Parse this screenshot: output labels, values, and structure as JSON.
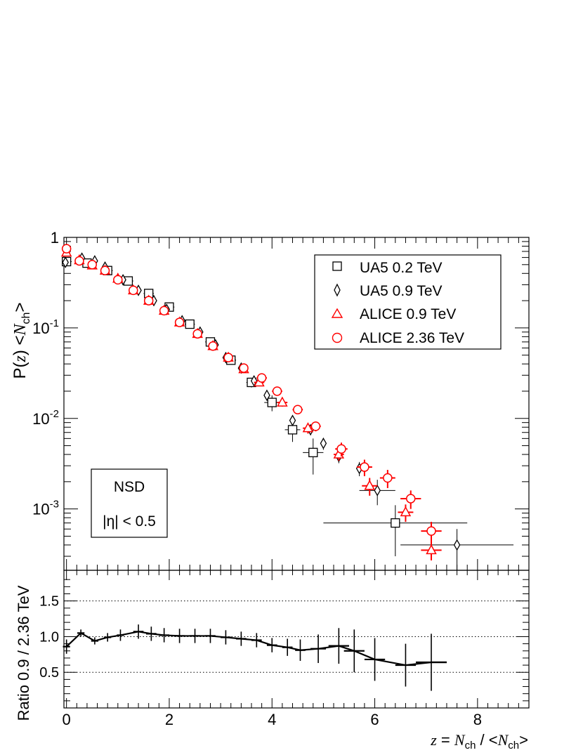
{
  "chart_data": [
    {
      "type": "scatter",
      "panel": "top",
      "ylabel": "P(z) <N_ch>",
      "ylabel_parts": {
        "prefix": "P(",
        "var": "z",
        "mid": ") <",
        "var2": "N",
        "sub": "ch",
        "suffix": ">"
      },
      "yscale": "log",
      "ylim": [
        0.00021,
        1
      ],
      "xlim": [
        -0.05,
        9.0
      ],
      "y_tick_labels": [
        {
          "value": 1,
          "base": "1",
          "exp": ""
        },
        {
          "value": 0.1,
          "base": "10",
          "exp": "-1"
        },
        {
          "value": 0.01,
          "base": "10",
          "exp": "-2"
        },
        {
          "value": 0.001,
          "base": "10",
          "exp": "-3"
        }
      ],
      "legend": {
        "placement": "top-right",
        "entries": [
          {
            "label": "UA5 0.2 TeV",
            "marker": "square",
            "color": "#000000"
          },
          {
            "label": "UA5 0.9 TeV",
            "marker": "diamond",
            "color": "#000000"
          },
          {
            "label": "ALICE 0.9 TeV",
            "marker": "triangle",
            "color": "#ff0000"
          },
          {
            "label": "ALICE 2.36 TeV",
            "marker": "circle",
            "color": "#ff0000"
          }
        ]
      },
      "annotation": {
        "line1": "NSD",
        "line2": "|η| < 0.5"
      },
      "series": [
        {
          "name": "UA5 0.2 TeV",
          "marker": "square",
          "color": "#000000",
          "points": [
            {
              "x": 0.0,
              "y": 0.54,
              "xerr": 0.1,
              "yerr": 0.03
            },
            {
              "x": 0.4,
              "y": 0.52,
              "xerr": 0.1,
              "yerr": 0.02
            },
            {
              "x": 0.8,
              "y": 0.43,
              "xerr": 0.1,
              "yerr": 0.02
            },
            {
              "x": 1.2,
              "y": 0.33,
              "xerr": 0.1,
              "yerr": 0.015
            },
            {
              "x": 1.6,
              "y": 0.24,
              "xerr": 0.1,
              "yerr": 0.012
            },
            {
              "x": 2.0,
              "y": 0.17,
              "xerr": 0.1,
              "yerr": 0.01
            },
            {
              "x": 2.4,
              "y": 0.11,
              "xerr": 0.1,
              "yerr": 0.006
            },
            {
              "x": 2.8,
              "y": 0.07,
              "xerr": 0.1,
              "yerr": 0.005
            },
            {
              "x": 3.2,
              "y": 0.044,
              "xerr": 0.1,
              "yerr": 0.004
            },
            {
              "x": 3.6,
              "y": 0.025,
              "xerr": 0.1,
              "yerr": 0.003
            },
            {
              "x": 4.0,
              "y": 0.015,
              "xerr": 0.15,
              "yerr": 0.003
            },
            {
              "x": 4.4,
              "y": 0.0075,
              "xerr": 0.15,
              "yerr": 0.002
            },
            {
              "x": 4.8,
              "y": 0.0042,
              "xerr": 0.2,
              "yerr": 0.0018
            },
            {
              "x": 6.4,
              "y": 0.0007,
              "xerr": 1.4,
              "yerr": 0.0004
            }
          ]
        },
        {
          "name": "UA5 0.9 TeV",
          "marker": "diamond",
          "color": "#000000",
          "points": [
            {
              "x": -0.02,
              "y": 0.53,
              "xerr": 0.04,
              "yerr": 0.03
            },
            {
              "x": 0.3,
              "y": 0.59,
              "xerr": 0.05,
              "yerr": 0.03
            },
            {
              "x": 0.55,
              "y": 0.55,
              "xerr": 0.05,
              "yerr": 0.02
            },
            {
              "x": 0.75,
              "y": 0.47,
              "xerr": 0.05,
              "yerr": 0.02
            },
            {
              "x": 1.1,
              "y": 0.34,
              "xerr": 0.05,
              "yerr": 0.015
            },
            {
              "x": 1.4,
              "y": 0.26,
              "xerr": 0.05,
              "yerr": 0.012
            },
            {
              "x": 1.7,
              "y": 0.2,
              "xerr": 0.05,
              "yerr": 0.01
            },
            {
              "x": 1.95,
              "y": 0.16,
              "xerr": 0.05,
              "yerr": 0.008
            },
            {
              "x": 2.25,
              "y": 0.12,
              "xerr": 0.05,
              "yerr": 0.006
            },
            {
              "x": 2.6,
              "y": 0.09,
              "xerr": 0.05,
              "yerr": 0.005
            },
            {
              "x": 2.9,
              "y": 0.065,
              "xerr": 0.05,
              "yerr": 0.004
            },
            {
              "x": 3.1,
              "y": 0.047,
              "xerr": 0.05,
              "yerr": 0.003
            },
            {
              "x": 3.4,
              "y": 0.036,
              "xerr": 0.05,
              "yerr": 0.003
            },
            {
              "x": 3.65,
              "y": 0.026,
              "xerr": 0.05,
              "yerr": 0.002
            },
            {
              "x": 3.9,
              "y": 0.018,
              "xerr": 0.05,
              "yerr": 0.0018
            },
            {
              "x": 4.4,
              "y": 0.0095,
              "xerr": 0.05,
              "yerr": 0.0012
            },
            {
              "x": 4.75,
              "y": 0.0075,
              "xerr": 0.05,
              "yerr": 0.001
            },
            {
              "x": 5.0,
              "y": 0.0053,
              "xerr": 0.05,
              "yerr": 0.0008
            },
            {
              "x": 5.3,
              "y": 0.0038,
              "xerr": 0.05,
              "yerr": 0.0006
            },
            {
              "x": 5.7,
              "y": 0.0028,
              "xerr": 0.05,
              "yerr": 0.0005
            },
            {
              "x": 6.05,
              "y": 0.0016,
              "xerr": 0.35,
              "yerr": 0.0005
            },
            {
              "x": 7.6,
              "y": 0.0004,
              "xerr": 1.1,
              "yerr": 0.0002
            }
          ]
        },
        {
          "name": "ALICE 0.9 TeV",
          "marker": "triangle",
          "color": "#ff0000",
          "points": [
            {
              "x": 0.0,
              "y": 0.68,
              "xerr": 0.07,
              "yerr": 0.04
            },
            {
              "x": 0.25,
              "y": 0.56,
              "xerr": 0.07,
              "yerr": 0.03
            },
            {
              "x": 0.5,
              "y": 0.49,
              "xerr": 0.07,
              "yerr": 0.02
            },
            {
              "x": 0.75,
              "y": 0.43,
              "xerr": 0.07,
              "yerr": 0.02
            },
            {
              "x": 1.0,
              "y": 0.35,
              "xerr": 0.07,
              "yerr": 0.015
            },
            {
              "x": 1.3,
              "y": 0.26,
              "xerr": 0.07,
              "yerr": 0.012
            },
            {
              "x": 1.6,
              "y": 0.2,
              "xerr": 0.07,
              "yerr": 0.01
            },
            {
              "x": 1.9,
              "y": 0.155,
              "xerr": 0.07,
              "yerr": 0.008
            },
            {
              "x": 2.2,
              "y": 0.115,
              "xerr": 0.07,
              "yerr": 0.006
            },
            {
              "x": 2.55,
              "y": 0.086,
              "xerr": 0.07,
              "yerr": 0.005
            },
            {
              "x": 2.85,
              "y": 0.063,
              "xerr": 0.07,
              "yerr": 0.004
            },
            {
              "x": 3.15,
              "y": 0.047,
              "xerr": 0.07,
              "yerr": 0.003
            },
            {
              "x": 3.45,
              "y": 0.035,
              "xerr": 0.07,
              "yerr": 0.003
            },
            {
              "x": 3.75,
              "y": 0.025,
              "xerr": 0.1,
              "yerr": 0.002
            },
            {
              "x": 4.2,
              "y": 0.015,
              "xerr": 0.1,
              "yerr": 0.0015
            },
            {
              "x": 4.7,
              "y": 0.0078,
              "xerr": 0.1,
              "yerr": 0.001
            },
            {
              "x": 5.3,
              "y": 0.004,
              "xerr": 0.1,
              "yerr": 0.0006
            },
            {
              "x": 5.9,
              "y": 0.0018,
              "xerr": 0.15,
              "yerr": 0.0004
            },
            {
              "x": 6.6,
              "y": 0.00092,
              "xerr": 0.15,
              "yerr": 0.0002
            },
            {
              "x": 7.1,
              "y": 0.00035,
              "xerr": 0.2,
              "yerr": 8e-05
            }
          ]
        },
        {
          "name": "ALICE 2.36 TeV",
          "marker": "circle",
          "color": "#ff0000",
          "points": [
            {
              "x": 0.0,
              "y": 0.75,
              "xerr": 0.07,
              "yerr": 0.05
            },
            {
              "x": 0.25,
              "y": 0.55,
              "xerr": 0.07,
              "yerr": 0.03
            },
            {
              "x": 0.5,
              "y": 0.5,
              "xerr": 0.07,
              "yerr": 0.02
            },
            {
              "x": 0.75,
              "y": 0.43,
              "xerr": 0.07,
              "yerr": 0.02
            },
            {
              "x": 1.0,
              "y": 0.34,
              "xerr": 0.07,
              "yerr": 0.015
            },
            {
              "x": 1.3,
              "y": 0.26,
              "xerr": 0.07,
              "yerr": 0.012
            },
            {
              "x": 1.6,
              "y": 0.2,
              "xerr": 0.07,
              "yerr": 0.01
            },
            {
              "x": 1.9,
              "y": 0.155,
              "xerr": 0.07,
              "yerr": 0.008
            },
            {
              "x": 2.2,
              "y": 0.115,
              "xerr": 0.07,
              "yerr": 0.006
            },
            {
              "x": 2.55,
              "y": 0.086,
              "xerr": 0.07,
              "yerr": 0.005
            },
            {
              "x": 2.85,
              "y": 0.063,
              "xerr": 0.07,
              "yerr": 0.004
            },
            {
              "x": 3.15,
              "y": 0.047,
              "xerr": 0.07,
              "yerr": 0.003
            },
            {
              "x": 3.45,
              "y": 0.036,
              "xerr": 0.07,
              "yerr": 0.003
            },
            {
              "x": 3.8,
              "y": 0.028,
              "xerr": 0.1,
              "yerr": 0.002
            },
            {
              "x": 4.1,
              "y": 0.02,
              "xerr": 0.1,
              "yerr": 0.0018
            },
            {
              "x": 4.5,
              "y": 0.0125,
              "xerr": 0.1,
              "yerr": 0.0012
            },
            {
              "x": 4.85,
              "y": 0.0082,
              "xerr": 0.1,
              "yerr": 0.001
            },
            {
              "x": 5.35,
              "y": 0.0046,
              "xerr": 0.12,
              "yerr": 0.0008
            },
            {
              "x": 5.8,
              "y": 0.0029,
              "xerr": 0.15,
              "yerr": 0.0006
            },
            {
              "x": 6.25,
              "y": 0.0022,
              "xerr": 0.15,
              "yerr": 0.0005
            },
            {
              "x": 6.7,
              "y": 0.0013,
              "xerr": 0.2,
              "yerr": 0.0003
            },
            {
              "x": 7.1,
              "y": 0.00057,
              "xerr": 0.2,
              "yerr": 0.00015
            }
          ]
        }
      ]
    },
    {
      "type": "line",
      "panel": "bottom",
      "ylabel": "Ratio 0.9 / 2.36 TeV",
      "xlabel": "z = N_ch / <N_ch>",
      "xlabel_parts": {
        "var": "z",
        "eq": " = ",
        "var2": "N",
        "sub": "ch",
        "mid": " / <",
        "var3": "N",
        "sub2": "ch",
        "suffix": ">"
      },
      "xlim": [
        -0.05,
        9.0
      ],
      "ylim": [
        0.0,
        1.93
      ],
      "x_tick_labels": [
        "0",
        "2",
        "4",
        "6",
        "8"
      ],
      "x_tick_values": [
        0,
        2,
        4,
        6,
        8
      ],
      "y_tick_labels": [
        "0.5",
        "1.0",
        "1.5"
      ],
      "y_tick_values": [
        0.5,
        1.0,
        1.5
      ],
      "reference_lines": [
        0.5,
        1.0,
        1.5
      ],
      "series": [
        {
          "name": "",
          "color": "#000000",
          "points": [
            {
              "x": 0.0,
              "y": 0.86,
              "xerr": 0.07,
              "yerr": 0.1
            },
            {
              "x": 0.28,
              "y": 1.05,
              "xerr": 0.07,
              "yerr": 0.05
            },
            {
              "x": 0.55,
              "y": 0.94,
              "xerr": 0.07,
              "yerr": 0.05
            },
            {
              "x": 0.8,
              "y": 0.99,
              "xerr": 0.07,
              "yerr": 0.06
            },
            {
              "x": 1.05,
              "y": 1.02,
              "xerr": 0.07,
              "yerr": 0.08
            },
            {
              "x": 1.4,
              "y": 1.07,
              "xerr": 0.1,
              "yerr": 0.1
            },
            {
              "x": 1.65,
              "y": 1.04,
              "xerr": 0.1,
              "yerr": 0.1
            },
            {
              "x": 1.9,
              "y": 1.02,
              "xerr": 0.1,
              "yerr": 0.1
            },
            {
              "x": 2.2,
              "y": 1.01,
              "xerr": 0.1,
              "yerr": 0.1
            },
            {
              "x": 2.5,
              "y": 1.01,
              "xerr": 0.1,
              "yerr": 0.1
            },
            {
              "x": 2.8,
              "y": 1.01,
              "xerr": 0.1,
              "yerr": 0.1
            },
            {
              "x": 3.1,
              "y": 0.99,
              "xerr": 0.1,
              "yerr": 0.1
            },
            {
              "x": 3.4,
              "y": 0.97,
              "xerr": 0.1,
              "yerr": 0.1
            },
            {
              "x": 3.7,
              "y": 0.95,
              "xerr": 0.1,
              "yerr": 0.1
            },
            {
              "x": 4.0,
              "y": 0.88,
              "xerr": 0.1,
              "yerr": 0.1
            },
            {
              "x": 4.3,
              "y": 0.85,
              "xerr": 0.1,
              "yerr": 0.12
            },
            {
              "x": 4.55,
              "y": 0.81,
              "xerr": 0.1,
              "yerr": 0.15
            },
            {
              "x": 4.9,
              "y": 0.83,
              "xerr": 0.15,
              "yerr": 0.2
            },
            {
              "x": 5.3,
              "y": 0.87,
              "xerr": 0.2,
              "yerr": 0.25
            },
            {
              "x": 5.6,
              "y": 0.8,
              "xerr": 0.2,
              "yerr": 0.3
            },
            {
              "x": 6.0,
              "y": 0.68,
              "xerr": 0.2,
              "yerr": 0.3
            },
            {
              "x": 6.6,
              "y": 0.6,
              "xerr": 0.2,
              "yerr": 0.3
            },
            {
              "x": 7.1,
              "y": 0.64,
              "xerr": 0.3,
              "yerr": 0.4
            }
          ]
        }
      ]
    }
  ]
}
